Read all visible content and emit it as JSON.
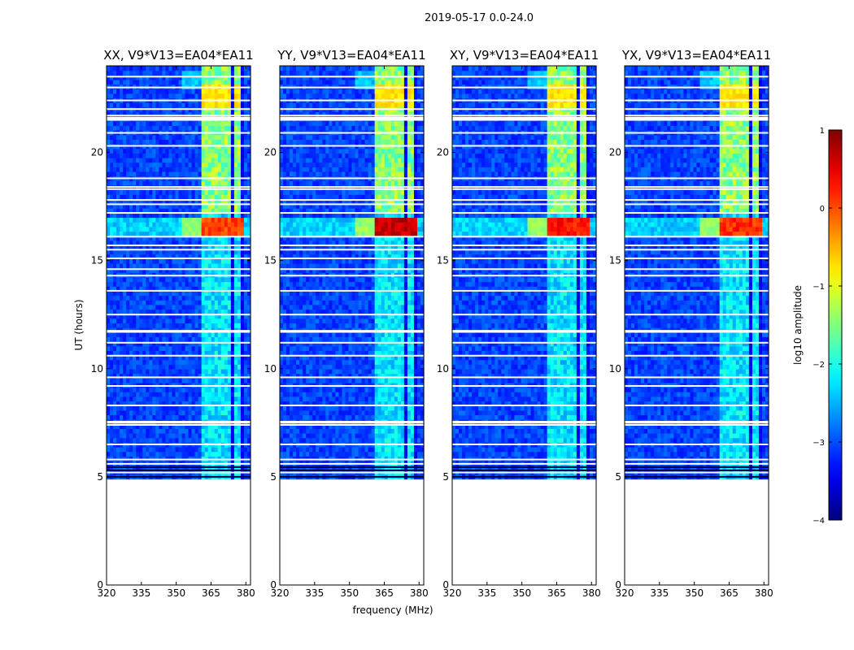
{
  "figure": {
    "title": "2019-05-17 0.0-24.0"
  },
  "chart_data": {
    "type": "heatmap",
    "title": "2019-05-17 0.0-24.0",
    "xlabel": "frequency (MHz)",
    "ylabel": "UT (hours)",
    "xlim": [
      320,
      382
    ],
    "ylim": [
      0,
      24
    ],
    "xticks": [
      320,
      335,
      350,
      365,
      380
    ],
    "yticks": [
      0,
      5,
      10,
      15,
      20
    ],
    "data_extent_hours": [
      4.9,
      24.0
    ],
    "colorscale": "jet",
    "colorbar": {
      "label": "log10 amplitude",
      "range": [
        -4,
        1
      ],
      "ticks": [
        "1",
        "0",
        "−1",
        "−2",
        "−3",
        "−4"
      ]
    },
    "panels": [
      {
        "title": "XX, V9*V13=EA04*EA11",
        "rfi_peak_log_amp": 0.3
      },
      {
        "title": "YY, V9*V13=EA04*EA11",
        "rfi_peak_log_amp": 0.9
      },
      {
        "title": "XY, V9*V13=EA04*EA11",
        "rfi_peak_log_amp": 0.5
      },
      {
        "title": "YX, V9*V13=EA04*EA11",
        "rfi_peak_log_amp": 0.4
      }
    ],
    "rfi_band_mhz": [
      361,
      379
    ],
    "rfi_burst_hours": [
      16.2,
      17.0
    ],
    "flagged_time_hours": [
      5.2,
      5.6,
      5.8,
      6.5,
      7.4,
      7.5,
      7.55,
      8.3,
      9.2,
      9.6,
      10.6,
      11.2,
      11.7,
      11.75,
      12.5,
      13.6,
      14.3,
      14.6,
      15.1,
      15.5,
      15.7,
      16.1,
      17.2,
      17.6,
      17.8,
      18.3,
      18.4,
      18.8,
      20.3,
      20.9,
      21.5,
      21.55,
      21.6,
      21.7,
      22.0,
      22.4,
      23.0,
      23.5
    ]
  }
}
